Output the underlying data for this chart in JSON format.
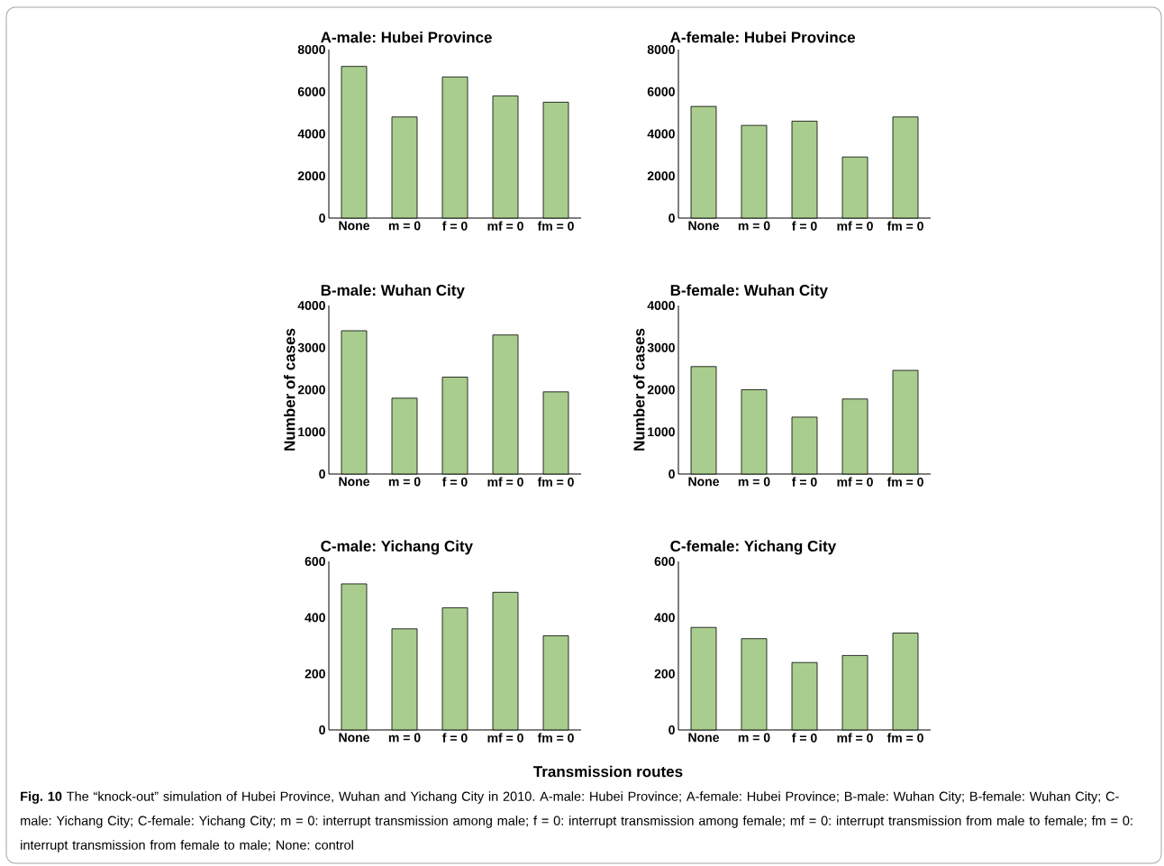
{
  "chart_data": [
    {
      "type": "bar",
      "title": "A-male: Hubei Province",
      "categories": [
        "None",
        "m = 0",
        "f = 0",
        "mf = 0",
        "fm = 0"
      ],
      "values": [
        7200,
        4800,
        6700,
        5800,
        5500
      ],
      "color": "#a9cd8e",
      "ylim": [
        0,
        8000
      ],
      "yticks": [
        0,
        2000,
        4000,
        6000,
        8000
      ]
    },
    {
      "type": "bar",
      "title": "A-female: Hubei Province",
      "categories": [
        "None",
        "m = 0",
        "f = 0",
        "mf = 0",
        "fm = 0"
      ],
      "values": [
        5300,
        4400,
        4600,
        2900,
        4800
      ],
      "color": "#a9cd8e",
      "ylim": [
        0,
        8000
      ],
      "yticks": [
        0,
        2000,
        4000,
        6000,
        8000
      ]
    },
    {
      "type": "bar",
      "title": "B-male: Wuhan City",
      "ylabel": "Number of cases",
      "categories": [
        "None",
        "m = 0",
        "f = 0",
        "mf = 0",
        "fm = 0"
      ],
      "values": [
        3400,
        1800,
        2300,
        3300,
        1950
      ],
      "color": "#a9cd8e",
      "ylim": [
        0,
        4000
      ],
      "yticks": [
        0,
        1000,
        2000,
        3000,
        4000
      ]
    },
    {
      "type": "bar",
      "title": "B-female: Wuhan City",
      "ylabel": "Number of cases",
      "categories": [
        "None",
        "m = 0",
        "f = 0",
        "mf = 0",
        "fm = 0"
      ],
      "values": [
        2550,
        2000,
        1350,
        1780,
        2460
      ],
      "color": "#a9cd8e",
      "ylim": [
        0,
        4000
      ],
      "yticks": [
        0,
        1000,
        2000,
        3000,
        4000
      ]
    },
    {
      "type": "bar",
      "title": "C-male: Yichang City",
      "xlabel": "Transmission routes",
      "categories": [
        "None",
        "m = 0",
        "f = 0",
        "mf = 0",
        "fm = 0"
      ],
      "values": [
        520,
        360,
        435,
        490,
        335
      ],
      "color": "#a9cd8e",
      "ylim": [
        0,
        600
      ],
      "yticks": [
        0,
        200,
        400,
        600
      ]
    },
    {
      "type": "bar",
      "title": "C-female: Yichang City",
      "categories": [
        "None",
        "m = 0",
        "f = 0",
        "mf = 0",
        "fm = 0"
      ],
      "values": [
        365,
        325,
        240,
        265,
        345
      ],
      "color": "#a9cd8e",
      "ylim": [
        0,
        600
      ],
      "yticks": [
        0,
        200,
        400,
        600
      ],
      "annotations": [
        "**Fig. 10** The “knock-out” simulation of Hubei Province, Wuhan and Yichang City in 2010. A-male: Hubei Province; A-female: Hubei Province; B-male: Wuhan City; B-female: Wuhan City; C-male: Yichang City; C-female: Yichang City; m = 0: interrupt transmission among male; f = 0: interrupt transmission among female; mf = 0: interrupt transmission from male to female; fm = 0: interrupt transmission from female to male; None: control"
      ]
    }
  ]
}
